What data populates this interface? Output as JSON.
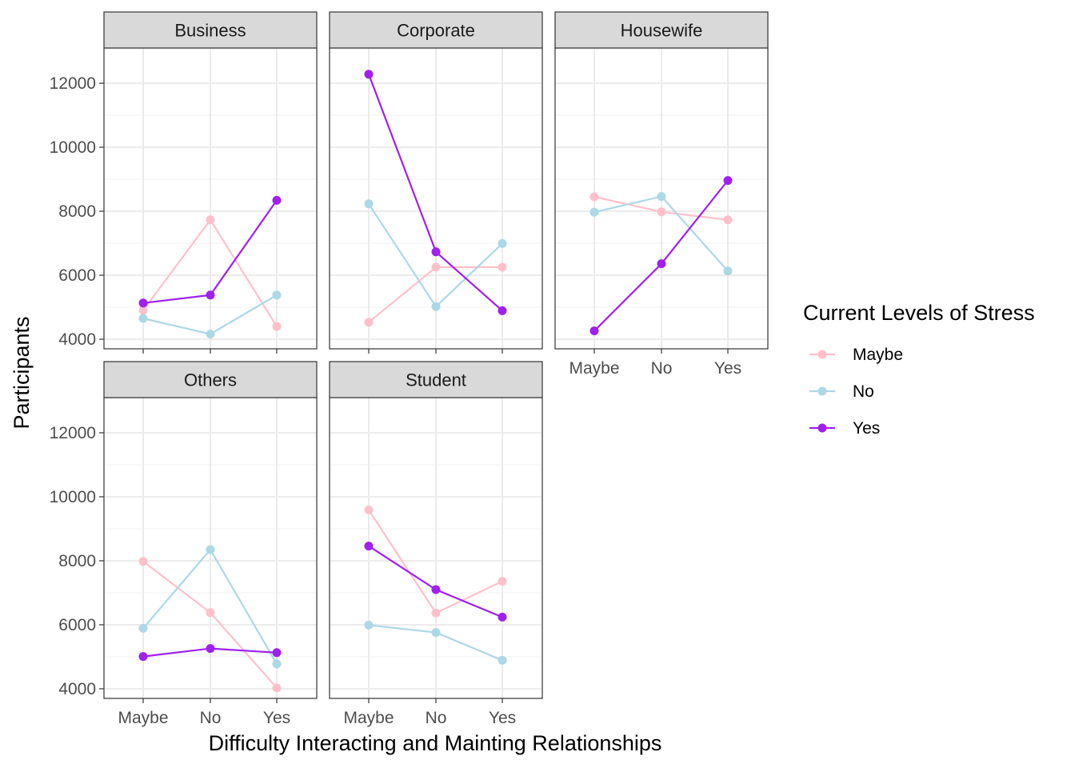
{
  "chart_data": {
    "type": "line",
    "facets": [
      "Business",
      "Corporate",
      "Housewife",
      "Others",
      "Student"
    ],
    "categories": [
      "Maybe",
      "No",
      "Yes"
    ],
    "xlabel": "Difficulty Interacting and Mainting Relationships",
    "ylabel": "Participants",
    "ylim": [
      3700,
      13100
    ],
    "yticks": [
      4000,
      6000,
      8000,
      10000,
      12000
    ],
    "grid": true,
    "legend": {
      "title": "Current Levels of Stress",
      "position": "right"
    },
    "series": [
      {
        "name": "Maybe",
        "color": "#ffc0cb",
        "values": {
          "Business": [
            4900,
            7730,
            4400
          ],
          "Corporate": [
            4530,
            6250,
            6250
          ],
          "Housewife": [
            8450,
            7980,
            7730
          ],
          "Others": [
            7980,
            6380,
            4030
          ],
          "Student": [
            9590,
            6370,
            7360
          ]
        }
      },
      {
        "name": "No",
        "color": "#add8e6",
        "values": {
          "Business": [
            4650,
            4160,
            5380
          ],
          "Corporate": [
            8230,
            5020,
            6990
          ],
          "Housewife": [
            7970,
            8460,
            6130
          ],
          "Others": [
            5890,
            8350,
            4780
          ],
          "Student": [
            5990,
            5760,
            4890
          ]
        }
      },
      {
        "name": "Yes",
        "color": "#a020f0",
        "values": {
          "Business": [
            5130,
            5380,
            8340
          ],
          "Corporate": [
            12280,
            6730,
            4890
          ],
          "Housewife": [
            4260,
            6360,
            8960
          ],
          "Others": [
            5010,
            5260,
            5130
          ],
          "Student": [
            8460,
            7100,
            6240
          ]
        }
      }
    ]
  }
}
